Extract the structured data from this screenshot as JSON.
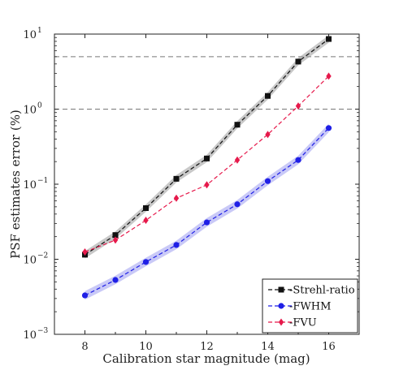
{
  "chart_data": {
    "type": "line",
    "xlabel": "Calibration star magnitude (mag)",
    "ylabel": "PSF estimates error (%)",
    "yscale": "log",
    "xlim": [
      7,
      17
    ],
    "ylim": [
      0.001,
      10
    ],
    "xticks": [
      "8",
      "10",
      "12",
      "14",
      "16"
    ],
    "xtick_values": [
      8,
      10,
      12,
      14,
      16
    ],
    "yticks": [
      {
        "value": 0.001,
        "base": "10",
        "exp": "−3"
      },
      {
        "value": 0.01,
        "base": "10",
        "exp": "−2"
      },
      {
        "value": 0.1,
        "base": "10",
        "exp": "−1"
      },
      {
        "value": 1,
        "base": "10",
        "exp": "0"
      },
      {
        "value": 10,
        "base": "10",
        "exp": "1"
      }
    ],
    "reference_lines": [
      1,
      5
    ],
    "legend_position": "bottom-right",
    "x": [
      8,
      9,
      10,
      11,
      12,
      13,
      14,
      15,
      16
    ],
    "series": [
      {
        "name": "Strehl-ratio",
        "color": "#111111",
        "band_color": "#9a9a9a",
        "marker": "square",
        "values": [
          0.0115,
          0.021,
          0.048,
          0.118,
          0.22,
          0.62,
          1.5,
          4.3,
          8.6
        ],
        "band": 0.12
      },
      {
        "name": "FWHM",
        "color": "#1f1fe6",
        "band_color": "#9c9cf0",
        "marker": "circle",
        "values": [
          0.0033,
          0.0053,
          0.0092,
          0.0155,
          0.031,
          0.054,
          0.11,
          0.21,
          0.56
        ],
        "band": 0.14
      },
      {
        "name": "FVU",
        "color": "#e6194b",
        "band_color": "#f3a0b4",
        "marker": "diamond",
        "values": [
          0.0125,
          0.018,
          0.033,
          0.065,
          0.098,
          0.21,
          0.46,
          1.1,
          2.75
        ],
        "band": 0.0
      }
    ]
  }
}
